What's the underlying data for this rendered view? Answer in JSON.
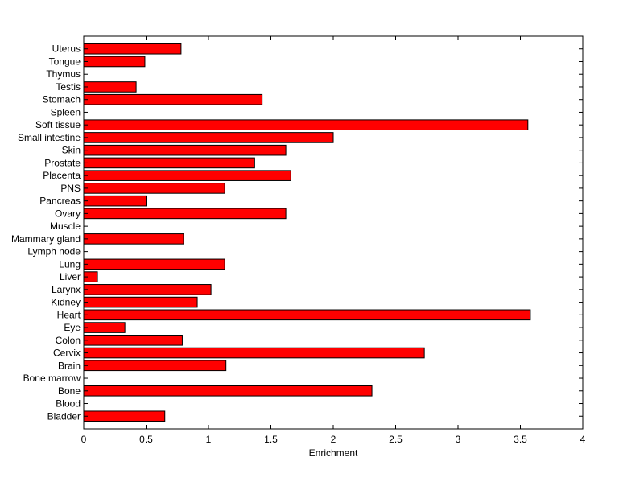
{
  "chart_data": {
    "type": "bar",
    "orientation": "horizontal",
    "categories": [
      "Bladder",
      "Blood",
      "Bone",
      "Bone marrow",
      "Brain",
      "Cervix",
      "Colon",
      "Eye",
      "Heart",
      "Kidney",
      "Larynx",
      "Liver",
      "Lung",
      "Lymph node",
      "Mammary gland",
      "Muscle",
      "Ovary",
      "Pancreas",
      "PNS",
      "Placenta",
      "Prostate",
      "Skin",
      "Small intestine",
      "Soft tissue",
      "Spleen",
      "Stomach",
      "Testis",
      "Thymus",
      "Tongue",
      "Uterus"
    ],
    "values": [
      0.65,
      0,
      2.31,
      0,
      1.14,
      2.73,
      0.79,
      0.33,
      3.58,
      0.91,
      1.02,
      0.11,
      1.13,
      0,
      0.8,
      0,
      1.62,
      0.5,
      1.13,
      1.66,
      1.37,
      1.62,
      2.0,
      3.56,
      0,
      1.43,
      0.42,
      0,
      0.49,
      0.78
    ],
    "title": "",
    "xlabel": "Enrichment",
    "ylabel": "",
    "xlim": [
      0,
      4
    ],
    "xticks": [
      0,
      0.5,
      1,
      1.5,
      2,
      2.5,
      3,
      3.5,
      4
    ],
    "xtick_labels": [
      "0",
      "0.5",
      "1",
      "1.5",
      "2",
      "2.5",
      "3",
      "3.5",
      "4"
    ],
    "bar_color": "#ff0000",
    "edge_color": "#000000",
    "grid": false,
    "legend": "none"
  }
}
